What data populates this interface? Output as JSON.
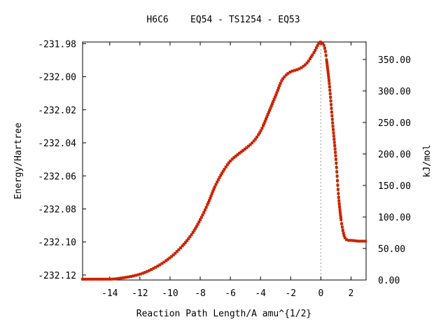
{
  "chart_data": {
    "type": "line",
    "title": "H6C6    EQ54 - TS1254 - EQ53",
    "xlabel": "Reaction Path Length/A amu^{1/2}",
    "ylabel": "Energy/Hartree",
    "y2label": "kJ/mol",
    "xlim": [
      -15.8,
      3.0
    ],
    "ylim": [
      -232.123,
      -231.979
    ],
    "y2lim": [
      0,
      377.7
    ],
    "xticks": [
      "-14",
      "-12",
      "-10",
      "-8",
      "-6",
      "-4",
      "-2",
      "0",
      "2"
    ],
    "xtick_values": [
      -14,
      -12,
      -10,
      -8,
      -6,
      -4,
      -2,
      0,
      2
    ],
    "yticks": [
      "-231.98",
      "-232.00",
      "-232.02",
      "-232.04",
      "-232.06",
      "-232.08",
      "-232.10",
      "-232.12"
    ],
    "ytick_values": [
      -231.98,
      -232.0,
      -232.02,
      -232.04,
      -232.06,
      -232.08,
      -232.1,
      -232.12
    ],
    "y2ticks": [
      "350.00",
      "300.00",
      "250.00",
      "200.00",
      "150.00",
      "100.00",
      "50.00",
      "0.00"
    ],
    "y2tick_values": [
      350,
      300,
      250,
      200,
      150,
      100,
      50,
      0
    ],
    "grid": false,
    "ts_marker_x": 0,
    "line_color": "#00a000",
    "marker_color": "#cc2200",
    "ts_line_color": "#999999",
    "series": [
      {
        "points": [
          [
            -15.8,
            -232.1225
          ],
          [
            -15.0,
            -232.1225
          ],
          [
            -14.0,
            -232.1225
          ],
          [
            -13.0,
            -232.1215
          ],
          [
            -12.0,
            -232.1195
          ],
          [
            -11.0,
            -232.1155
          ],
          [
            -10.0,
            -232.1095
          ],
          [
            -9.0,
            -232.1005
          ],
          [
            -8.5,
            -232.0945
          ],
          [
            -8.0,
            -232.0865
          ],
          [
            -7.5,
            -232.077
          ],
          [
            -7.0,
            -232.066
          ],
          [
            -6.5,
            -232.0575
          ],
          [
            -6.0,
            -232.051
          ],
          [
            -5.5,
            -232.047
          ],
          [
            -5.0,
            -232.0435
          ],
          [
            -4.5,
            -232.0395
          ],
          [
            -4.0,
            -232.033
          ],
          [
            -3.5,
            -232.0225
          ],
          [
            -3.0,
            -232.0115
          ],
          [
            -2.5,
            -232.001
          ],
          [
            -2.0,
            -231.997
          ],
          [
            -1.5,
            -231.9955
          ],
          [
            -1.0,
            -231.9925
          ],
          [
            -0.5,
            -231.986
          ],
          [
            0.0,
            -231.979
          ],
          [
            0.2,
            -231.981
          ],
          [
            0.5,
            -231.999
          ],
          [
            0.8,
            -232.03
          ],
          [
            1.0,
            -232.05
          ],
          [
            1.2,
            -232.075
          ],
          [
            1.4,
            -232.09
          ],
          [
            1.6,
            -232.0975
          ],
          [
            1.8,
            -232.099
          ],
          [
            2.0,
            -232.099
          ],
          [
            2.5,
            -232.0995
          ],
          [
            3.0,
            -232.0995
          ]
        ]
      }
    ]
  }
}
